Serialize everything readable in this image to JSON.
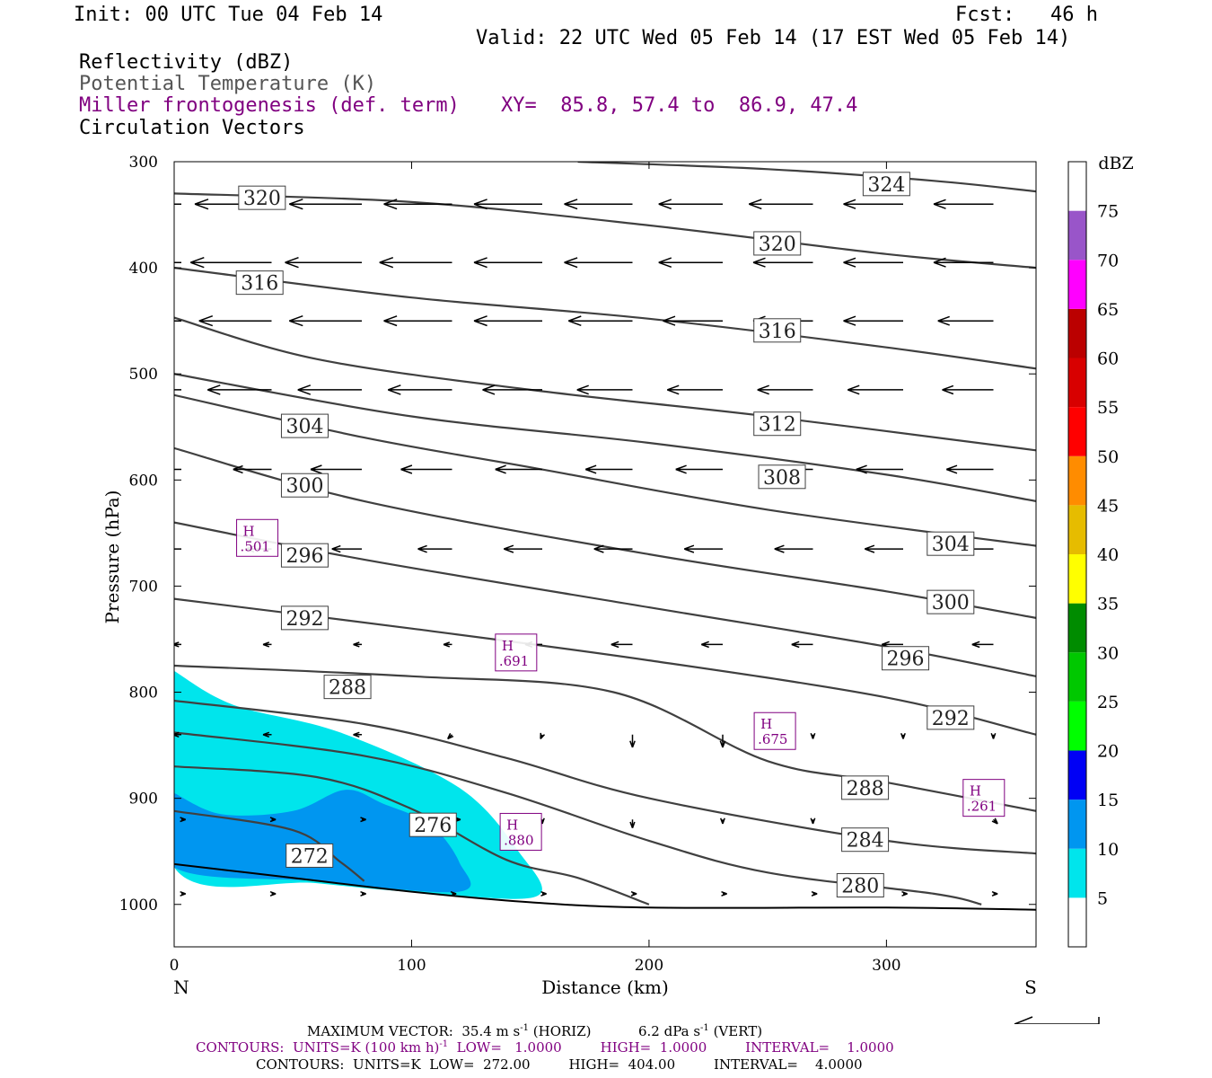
{
  "header": {
    "init": "Init: 00 UTC Tue 04 Feb 14",
    "fcst": "Fcst:   46 h",
    "valid": "Valid: 22 UTC Wed 05 Feb 14 (17 EST Wed 05 Feb 14)",
    "field1": "Reflectivity (dBZ)",
    "field2": "Potential Temperature (K)",
    "field3": "Miller frontogenesis (def. term)",
    "field4": "Circulation Vectors",
    "xy": "XY=  85.8, 57.4 to  86.9, 47.4"
  },
  "colors": {
    "theta_contour": "#404040",
    "frontogenesis": "#800080",
    "vector": "#000000"
  },
  "chart_data": {
    "type": "cross-section",
    "xlabel": "Distance (km)",
    "ylabel": "Pressure (hPa)",
    "xlim": [
      0,
      363
    ],
    "ylim": [
      1040,
      300
    ],
    "y_scale": "linear-inverted",
    "x_ticks": [
      0,
      100,
      200,
      300
    ],
    "y_ticks": [
      300,
      400,
      500,
      600,
      700,
      800,
      900,
      1000
    ],
    "x_end_labels": {
      "left": "N",
      "right": "S"
    },
    "colorbar": {
      "unit": "dBZ",
      "levels": [
        5,
        10,
        15,
        20,
        25,
        30,
        35,
        40,
        45,
        50,
        55,
        60,
        65,
        70,
        75
      ],
      "colors": [
        "#00e5ec",
        "#0096f0",
        "#0000f5",
        "#00ff00",
        "#00c800",
        "#008c00",
        "#ffff00",
        "#e6bc00",
        "#ff8c00",
        "#ff0000",
        "#d80000",
        "#bb0000",
        "#ff00ff",
        "#9955c9",
        "#ffffff"
      ],
      "below_min_color": "#ffffff"
    },
    "reflectivity_areas": [
      {
        "level": 5,
        "points": [
          [
            0,
            780
          ],
          [
            25,
            812
          ],
          [
            70,
            838
          ],
          [
            120,
            890
          ],
          [
            145,
            950
          ],
          [
            153,
            992
          ],
          [
            110,
            990
          ],
          [
            60,
            980
          ],
          [
            0,
            965
          ]
        ]
      },
      {
        "level": 10,
        "points": [
          [
            0,
            895
          ],
          [
            20,
            915
          ],
          [
            50,
            912
          ],
          [
            72,
            892
          ],
          [
            88,
            905
          ],
          [
            108,
            925
          ],
          [
            120,
            960
          ],
          [
            120,
            988
          ],
          [
            60,
            978
          ],
          [
            0,
            965
          ]
        ]
      }
    ],
    "theta_contours": [
      {
        "value": 324,
        "points": [
          [
            170,
            300
          ],
          [
            250,
            307
          ],
          [
            320,
            318
          ],
          [
            363,
            328
          ]
        ]
      },
      {
        "value": 320,
        "points": [
          [
            0,
            330
          ],
          [
            100,
            338
          ],
          [
            200,
            360
          ],
          [
            300,
            387
          ],
          [
            363,
            400
          ]
        ]
      },
      {
        "value": 316,
        "points": [
          [
            0,
            400
          ],
          [
            100,
            428
          ],
          [
            200,
            448
          ],
          [
            300,
            475
          ],
          [
            363,
            495
          ]
        ]
      },
      {
        "value": 312,
        "points": [
          [
            0,
            447
          ],
          [
            60,
            486
          ],
          [
            150,
            515
          ],
          [
            250,
            540
          ],
          [
            363,
            572
          ]
        ]
      },
      {
        "value": 308,
        "points": [
          [
            0,
            500
          ],
          [
            100,
            540
          ],
          [
            200,
            565
          ],
          [
            300,
            595
          ],
          [
            363,
            620
          ]
        ]
      },
      {
        "value": 304,
        "points": [
          [
            0,
            520
          ],
          [
            80,
            560
          ],
          [
            150,
            588
          ],
          [
            250,
            628
          ],
          [
            363,
            662
          ]
        ]
      },
      {
        "value": 300,
        "points": [
          [
            0,
            570
          ],
          [
            80,
            620
          ],
          [
            200,
            670
          ],
          [
            300,
            705
          ],
          [
            363,
            730
          ]
        ]
      },
      {
        "value": 296,
        "points": [
          [
            0,
            640
          ],
          [
            80,
            675
          ],
          [
            200,
            720
          ],
          [
            300,
            757
          ],
          [
            363,
            785
          ]
        ]
      },
      {
        "value": 292,
        "points": [
          [
            0,
            712
          ],
          [
            100,
            740
          ],
          [
            200,
            770
          ],
          [
            300,
            805
          ],
          [
            363,
            840
          ]
        ]
      },
      {
        "value": 288,
        "points": [
          [
            0,
            775
          ],
          [
            100,
            785
          ],
          [
            185,
            800
          ],
          [
            250,
            865
          ],
          [
            300,
            885
          ],
          [
            363,
            912
          ]
        ]
      },
      {
        "value": 284,
        "points": [
          [
            0,
            808
          ],
          [
            80,
            830
          ],
          [
            140,
            862
          ],
          [
            200,
            900
          ],
          [
            300,
            940
          ],
          [
            363,
            952
          ]
        ]
      },
      {
        "value": 280,
        "points": [
          [
            0,
            838
          ],
          [
            80,
            860
          ],
          [
            140,
            895
          ],
          [
            200,
            940
          ],
          [
            250,
            970
          ],
          [
            320,
            990
          ],
          [
            340,
            1000
          ]
        ]
      },
      {
        "value": 276,
        "points": [
          [
            0,
            870
          ],
          [
            60,
            880
          ],
          [
            100,
            910
          ],
          [
            140,
            958
          ],
          [
            170,
            975
          ],
          [
            200,
            1000
          ]
        ]
      },
      {
        "value": 272,
        "points": [
          [
            0,
            912
          ],
          [
            50,
            930
          ],
          [
            70,
            960
          ],
          [
            80,
            978
          ]
        ]
      }
    ],
    "theta_labels": [
      {
        "text": "324",
        "x": 300,
        "y": 321
      },
      {
        "text": "320",
        "x": 37,
        "y": 334
      },
      {
        "text": "320",
        "x": 254,
        "y": 377
      },
      {
        "text": "316",
        "x": 36,
        "y": 414
      },
      {
        "text": "316",
        "x": 254,
        "y": 459
      },
      {
        "text": "312",
        "x": 254,
        "y": 547
      },
      {
        "text": "308",
        "x": 256,
        "y": 597
      },
      {
        "text": "304",
        "x": 55,
        "y": 549
      },
      {
        "text": "304",
        "x": 327,
        "y": 660
      },
      {
        "text": "300",
        "x": 55,
        "y": 605
      },
      {
        "text": "300",
        "x": 327,
        "y": 715
      },
      {
        "text": "296",
        "x": 55,
        "y": 671
      },
      {
        "text": "296",
        "x": 308,
        "y": 768
      },
      {
        "text": "292",
        "x": 55,
        "y": 730
      },
      {
        "text": "292",
        "x": 327,
        "y": 824
      },
      {
        "text": "288",
        "x": 73,
        "y": 795
      },
      {
        "text": "288",
        "x": 291,
        "y": 890
      },
      {
        "text": "284",
        "x": 291,
        "y": 939
      },
      {
        "text": "280",
        "x": 289,
        "y": 982
      },
      {
        "text": "276",
        "x": 109,
        "y": 925
      },
      {
        "text": "272",
        "x": 57,
        "y": 954
      }
    ],
    "frontogenesis_maxima": [
      {
        "symbol": "H",
        "value": ".501",
        "x": 35,
        "y": 655
      },
      {
        "symbol": "H",
        "value": ".691",
        "x": 144,
        "y": 763
      },
      {
        "symbol": "H",
        "value": ".675",
        "x": 253,
        "y": 837
      },
      {
        "symbol": "H",
        "value": ".880",
        "x": 146,
        "y": 932
      },
      {
        "symbol": "H",
        "value": ".261",
        "x": 341,
        "y": 900
      }
    ],
    "vector_grid": {
      "x": [
        0,
        38,
        76,
        114,
        152,
        190,
        228,
        266,
        304,
        342
      ],
      "levels": [
        {
          "p": 340,
          "u": [
            -1.0,
            -0.9,
            -0.85,
            -0.8,
            -0.8,
            -0.8,
            -0.75,
            -0.75,
            -0.7,
            -0.7
          ],
          "w": [
            0,
            0,
            0,
            0,
            0,
            0,
            0,
            0,
            0,
            0
          ]
        },
        {
          "p": 395,
          "u": [
            -0.95,
            -0.95,
            -0.9,
            -0.85,
            -0.8,
            -0.8,
            -0.75,
            -0.7,
            -0.7,
            -0.7
          ],
          "w": [
            0,
            0,
            0,
            0,
            0,
            0,
            0,
            0,
            0,
            0
          ]
        },
        {
          "p": 450,
          "u": [
            -0.9,
            -0.85,
            -0.85,
            -0.8,
            -0.8,
            -0.75,
            -0.7,
            -0.7,
            -0.7,
            -0.65
          ],
          "w": [
            0,
            0,
            0,
            0,
            0,
            0,
            0,
            0,
            0,
            0
          ]
        },
        {
          "p": 515,
          "u": [
            -0.6,
            -0.75,
            -0.75,
            -0.75,
            -0.7,
            -0.65,
            -0.65,
            -0.65,
            -0.65,
            -0.6
          ],
          "w": [
            0,
            0,
            0,
            0,
            0,
            0,
            0,
            0,
            0,
            0
          ]
        },
        {
          "p": 590,
          "u": [
            -0.3,
            -0.45,
            -0.6,
            -0.6,
            -0.55,
            -0.55,
            -0.55,
            -0.55,
            -0.55,
            -0.55
          ],
          "w": [
            0,
            0,
            0,
            0,
            0,
            0,
            0,
            0,
            0,
            0
          ]
        },
        {
          "p": 665,
          "u": [
            -0.2,
            -0.3,
            -0.35,
            -0.4,
            -0.45,
            -0.45,
            -0.45,
            -0.45,
            -0.45,
            -0.45
          ],
          "w": [
            0,
            0,
            0,
            0,
            0,
            0,
            0,
            0,
            0,
            0
          ]
        },
        {
          "p": 755,
          "u": [
            -0.1,
            -0.1,
            -0.1,
            -0.1,
            -0.2,
            -0.25,
            -0.25,
            -0.25,
            -0.25,
            -0.25
          ],
          "w": [
            0,
            0,
            0,
            0,
            0,
            0,
            0,
            0,
            0,
            0
          ]
        },
        {
          "p": 840,
          "u": [
            -0.1,
            -0.1,
            -0.1,
            -0.05,
            -0.02,
            0.0,
            0.0,
            0.0,
            0.0,
            0.0
          ],
          "w": [
            0,
            0,
            0,
            0.05,
            0.05,
            0.15,
            0.15,
            0.05,
            0.05,
            0.05
          ]
        },
        {
          "p": 920,
          "u": [
            0.05,
            0.05,
            0.05,
            0.1,
            0.0,
            0.0,
            0.0,
            0.0,
            0.0,
            0.05
          ],
          "w": [
            0,
            0,
            0,
            0,
            0.05,
            0.1,
            0.05,
            0.05,
            0,
            0.05
          ]
        },
        {
          "p": 990,
          "u": [
            0.05,
            0.05,
            0.05,
            0.05,
            0.05,
            0.05,
            0.05,
            0.05,
            0.05,
            0.05
          ],
          "w": [
            0,
            0,
            0,
            0,
            0,
            0,
            0,
            0,
            0,
            0
          ]
        }
      ]
    },
    "terrain": [
      [
        0,
        962
      ],
      [
        50,
        975
      ],
      [
        100,
        988
      ],
      [
        150,
        998
      ],
      [
        200,
        1003
      ],
      [
        300,
        1003
      ],
      [
        363,
        1005
      ]
    ]
  },
  "footer": {
    "max_vector_prefix": "MAXIMUM VECTOR:",
    "max_vector_horiz": "35.4 m s",
    "horiz_exp": "-1",
    "horiz_tag": "(HORIZ)",
    "max_vector_vert": "6.2 dPa s",
    "vert_exp": "-1",
    "vert_tag": "(VERT)",
    "contours1_a": "CONTOURS:  UNITS=K (100 km h)",
    "contours1_exp": "-1",
    "contours1_b": "  LOW=   1.0000         HIGH=  1.0000         INTERVAL=    1.0000",
    "contours2": "CONTOURS:  UNITS=K  LOW=  272.00         HIGH=  404.00         INTERVAL=    4.0000"
  }
}
